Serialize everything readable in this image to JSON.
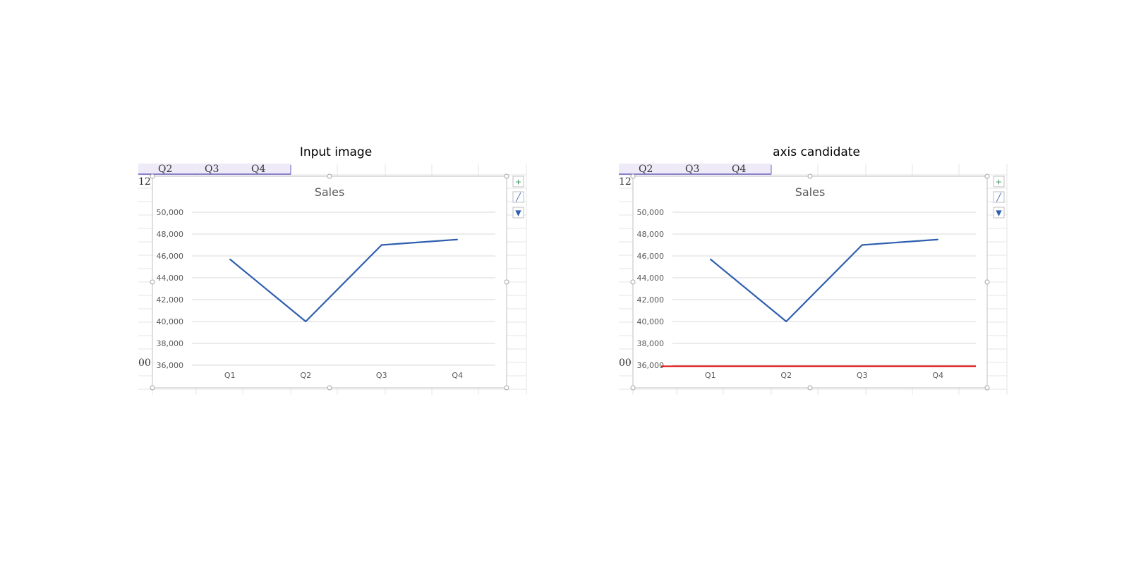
{
  "panels": [
    {
      "title": "Input image",
      "show_candidate": false
    },
    {
      "title": "axis candidate",
      "show_candidate": true
    }
  ],
  "spreadsheet": {
    "header_cells": [
      "Q2",
      "Q3",
      "Q4"
    ],
    "row_label_top": "12",
    "row_label_bottom": "00"
  },
  "chart_buttons": [
    {
      "name": "add-chart-element-icon",
      "glyph": "+"
    },
    {
      "name": "chart-styles-icon",
      "glyph": "╱"
    },
    {
      "name": "chart-filter-icon",
      "glyph": "▼"
    }
  ],
  "colors": {
    "series": "#2E5FAF",
    "candidate": "#E00000",
    "gridline": "#D9D9D9",
    "header_fill": "#EEEAF7",
    "header_line": "#6B5FBF"
  },
  "chart_data": {
    "type": "line",
    "title": "Sales",
    "categories": [
      "Q1",
      "Q2",
      "Q3",
      "Q4"
    ],
    "series": [
      {
        "values": [
          45700,
          40000,
          47000,
          47500
        ]
      }
    ],
    "ylim": [
      36000,
      50000
    ],
    "yticks": [
      36000,
      38000,
      40000,
      42000,
      44000,
      46000,
      48000,
      50000
    ],
    "ytick_labels": [
      "36,000",
      "38,000",
      "40,000",
      "42,000",
      "44,000",
      "46,000",
      "48,000",
      "50,000"
    ],
    "grid": true,
    "legend": "none",
    "candidate_axis_value": 36000
  }
}
